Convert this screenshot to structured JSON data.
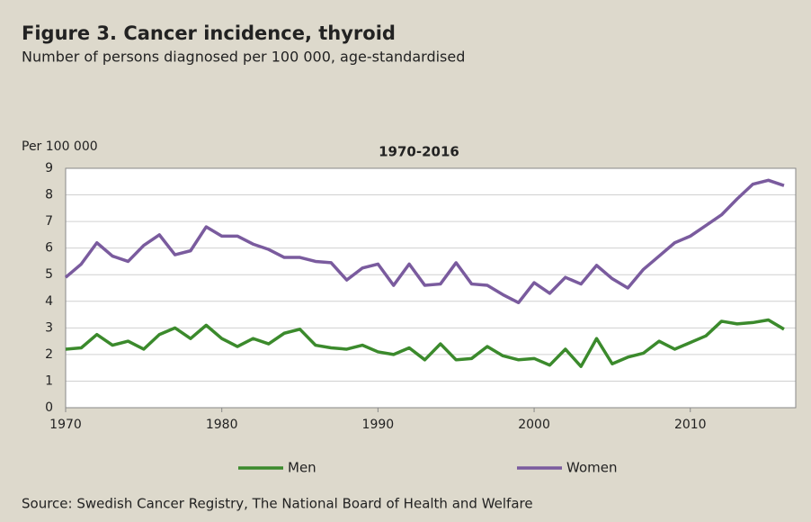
{
  "chart_data": {
    "type": "line",
    "title": "Figure 3. Cancer incidence, thyroid",
    "subtitle": "Number of persons diagnosed per 100 000, age-standardised",
    "y_label": "Per 100 000",
    "plot_title": "1970-2016",
    "source": "Source: Swedish Cancer Registry, The National Board of Health and Welfare",
    "x": [
      1970,
      1971,
      1972,
      1973,
      1974,
      1975,
      1976,
      1977,
      1978,
      1979,
      1980,
      1981,
      1982,
      1983,
      1984,
      1985,
      1986,
      1987,
      1988,
      1989,
      1990,
      1991,
      1992,
      1993,
      1994,
      1995,
      1996,
      1997,
      1998,
      1999,
      2000,
      2001,
      2002,
      2003,
      2004,
      2005,
      2006,
      2007,
      2008,
      2009,
      2010,
      2011,
      2012,
      2013,
      2014,
      2015,
      2016
    ],
    "series": [
      {
        "name": "Men",
        "color": "#3b8a2c",
        "values": [
          2.2,
          2.25,
          2.75,
          2.35,
          2.5,
          2.2,
          2.75,
          3.0,
          2.6,
          3.1,
          2.6,
          2.3,
          2.6,
          2.4,
          2.8,
          2.95,
          2.35,
          2.25,
          2.2,
          2.35,
          2.1,
          2.0,
          2.25,
          1.8,
          2.4,
          1.8,
          1.85,
          2.3,
          1.95,
          1.8,
          1.85,
          1.6,
          2.2,
          1.55,
          2.6,
          1.65,
          1.9,
          2.05,
          2.5,
          2.2,
          2.45,
          2.7,
          3.25,
          3.15,
          3.2,
          3.3,
          2.95
        ]
      },
      {
        "name": "Women",
        "color": "#7a5b9e",
        "values": [
          4.9,
          5.4,
          6.2,
          5.7,
          5.5,
          6.1,
          6.5,
          5.75,
          5.9,
          6.8,
          6.45,
          6.45,
          6.15,
          5.95,
          5.65,
          5.65,
          5.5,
          5.45,
          4.8,
          5.25,
          5.4,
          4.6,
          5.4,
          4.6,
          4.65,
          5.45,
          4.65,
          4.6,
          4.25,
          3.95,
          4.7,
          4.3,
          4.9,
          4.65,
          5.35,
          4.85,
          4.5,
          5.2,
          5.7,
          6.2,
          6.45,
          6.85,
          7.25,
          7.85,
          8.4,
          8.55,
          8.35
        ]
      }
    ],
    "xlim": [
      1970,
      2016.75
    ],
    "xticks": [
      1970,
      1980,
      1990,
      2000,
      2010
    ],
    "ylim": [
      0,
      9
    ],
    "yticks": [
      0,
      1,
      2,
      3,
      4,
      5,
      6,
      7,
      8,
      9
    ],
    "grid": true,
    "legend": "bottom"
  }
}
